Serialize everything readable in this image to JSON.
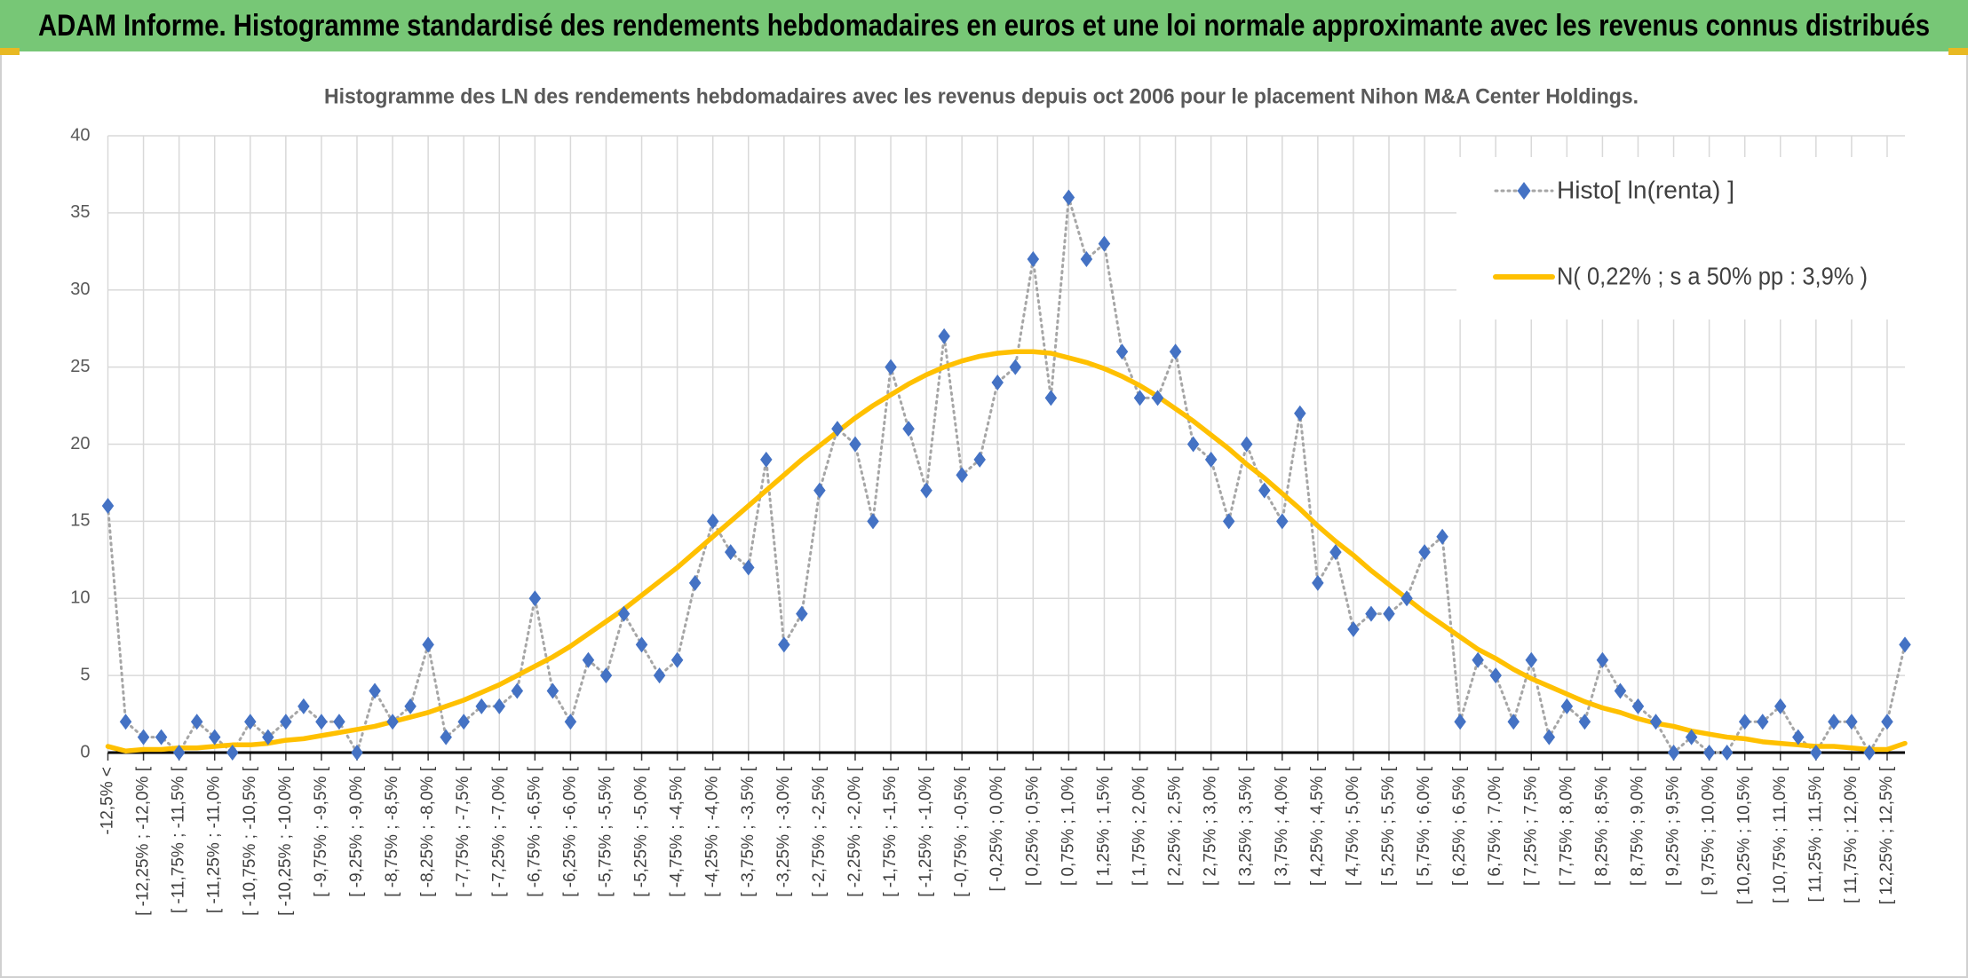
{
  "chart_data": {
    "type": "line",
    "title": "ADAM Informe. Histogramme standardisé des rendements hebdomadaires en euros et une loi normale approximante avec les revenus connus distribués",
    "subtitle": "Histogramme des LN des rendements hebdomadaires avec les revenus depuis oct 2006 pour le placement Nihon M&A Center Holdings.",
    "categories": [
      "-12,5% <",
      null,
      "[ -12,25% ; -12,0% [",
      null,
      "[ -11,75% ; -11,5% [",
      null,
      "[ -11,25% ; -11,0% [",
      null,
      "[ -10,75% ; -10,5% [",
      null,
      "[ -10,25% ; -10,0% [",
      null,
      "[ -9,75% ; -9,5% [",
      null,
      "[ -9,25% ; -9,0% [",
      null,
      "[ -8,75% ; -8,5% [",
      null,
      "[ -8,25% ; -8,0% [",
      null,
      "[ -7,75% ; -7,5% [",
      null,
      "[ -7,25% ; -7,0% [",
      null,
      "[ -6,75% ; -6,5% [",
      null,
      "[ -6,25% ; -6,0% [",
      null,
      "[ -5,75% ; -5,5% [",
      null,
      "[ -5,25% ; -5,0% [",
      null,
      "[ -4,75% ; -4,5% [",
      null,
      "[ -4,25% ; -4,0% [",
      null,
      "[ -3,75% ; -3,5% [",
      null,
      "[ -3,25% ; -3,0% [",
      null,
      "[ -2,75% ; -2,5% [",
      null,
      "[ -2,25% ; -2,0% [",
      null,
      "[ -1,75% ; -1,5% [",
      null,
      "[ -1,25% ; -1,0% [",
      null,
      "[ -0,75% ; -0,5% [",
      null,
      "[ -0,25% ; 0,0% [",
      null,
      "[ 0,25% ; 0,5% [",
      null,
      "[ 0,75% ; 1,0% [",
      null,
      "[ 1,25% ; 1,5% [",
      null,
      "[ 1,75% ; 2,0% [",
      null,
      "[ 2,25% ; 2,5% [",
      null,
      "[ 2,75% ; 3,0% [",
      null,
      "[ 3,25% ; 3,5% [",
      null,
      "[ 3,75% ; 4,0% [",
      null,
      "[ 4,25% ; 4,5% [",
      null,
      "[ 4,75% ; 5,0% [",
      null,
      "[ 5,25% ; 5,5% [",
      null,
      "[ 5,75% ; 6,0% [",
      null,
      "[ 6,25% ; 6,5% [",
      null,
      "[ 6,75% ; 7,0% [",
      null,
      "[ 7,25% ; 7,5% [",
      null,
      "[ 7,75% ; 8,0% [",
      null,
      "[ 8,25% ; 8,5% [",
      null,
      "[ 8,75% ; 9,0% [",
      null,
      "[ 9,25% ; 9,5% [",
      null,
      "[ 9,75% ; 10,0% [",
      null,
      "[ 10,25% ; 10,5% [",
      null,
      "[ 10,75% ; 11,0% [",
      null,
      "[ 11,25% ; 11,5% [",
      null,
      "[ 11,75% ; 12,0% [",
      null,
      "[ 12,25% ; 12,5% [",
      null
    ],
    "series": [
      {
        "name": "Histo[ ln(renta) ]",
        "color": "#4472c4",
        "line_color": "#a6a6a6",
        "line_style": "dotted",
        "marker": "diamond",
        "values": [
          16,
          2,
          1,
          1,
          0,
          2,
          1,
          0,
          2,
          1,
          2,
          3,
          2,
          2,
          0,
          4,
          2,
          3,
          7,
          1,
          2,
          3,
          3,
          4,
          10,
          4,
          2,
          6,
          5,
          9,
          7,
          5,
          6,
          11,
          15,
          13,
          12,
          19,
          7,
          9,
          17,
          21,
          20,
          15,
          25,
          21,
          17,
          27,
          18,
          19,
          24,
          25,
          32,
          23,
          36,
          32,
          33,
          26,
          23,
          23,
          26,
          20,
          19,
          15,
          20,
          17,
          15,
          22,
          11,
          13,
          8,
          9,
          9,
          10,
          13,
          14,
          2,
          6,
          5,
          2,
          6,
          1,
          3,
          2,
          6,
          4,
          3,
          2,
          0,
          1,
          0,
          0,
          2,
          2,
          3,
          1,
          0,
          2,
          2,
          0,
          2,
          7
        ]
      },
      {
        "name": "N( 0,22% ; s a 50% pp : 3,9% )",
        "color": "#ffc000",
        "line_style": "solid",
        "values": [
          0.4,
          0.1,
          0.2,
          0.2,
          0.3,
          0.3,
          0.4,
          0.5,
          0.5,
          0.6,
          0.8,
          0.9,
          1.1,
          1.3,
          1.5,
          1.7,
          2.0,
          2.3,
          2.6,
          3.0,
          3.4,
          3.9,
          4.4,
          5.0,
          5.6,
          6.2,
          6.9,
          7.7,
          8.5,
          9.3,
          10.2,
          11.1,
          12.0,
          13.0,
          14.0,
          15.0,
          16.0,
          17.0,
          18.0,
          19.0,
          19.9,
          20.8,
          21.7,
          22.5,
          23.2,
          23.9,
          24.5,
          25.0,
          25.4,
          25.7,
          25.9,
          26.0,
          26.0,
          25.9,
          25.6,
          25.3,
          24.9,
          24.4,
          23.8,
          23.1,
          22.3,
          21.5,
          20.6,
          19.7,
          18.7,
          17.8,
          16.8,
          15.8,
          14.7,
          13.7,
          12.8,
          11.8,
          10.9,
          10.0,
          9.1,
          8.3,
          7.5,
          6.7,
          6.1,
          5.4,
          4.8,
          4.3,
          3.8,
          3.3,
          2.9,
          2.6,
          2.2,
          1.9,
          1.7,
          1.4,
          1.2,
          1.0,
          0.9,
          0.7,
          0.6,
          0.5,
          0.4,
          0.4,
          0.3,
          0.2,
          0.2,
          0.6
        ]
      }
    ],
    "ylim": [
      0,
      40
    ],
    "yticks": [
      0,
      5,
      10,
      15,
      20,
      25,
      30,
      35,
      40
    ],
    "grid": true,
    "legend": "top-right"
  }
}
